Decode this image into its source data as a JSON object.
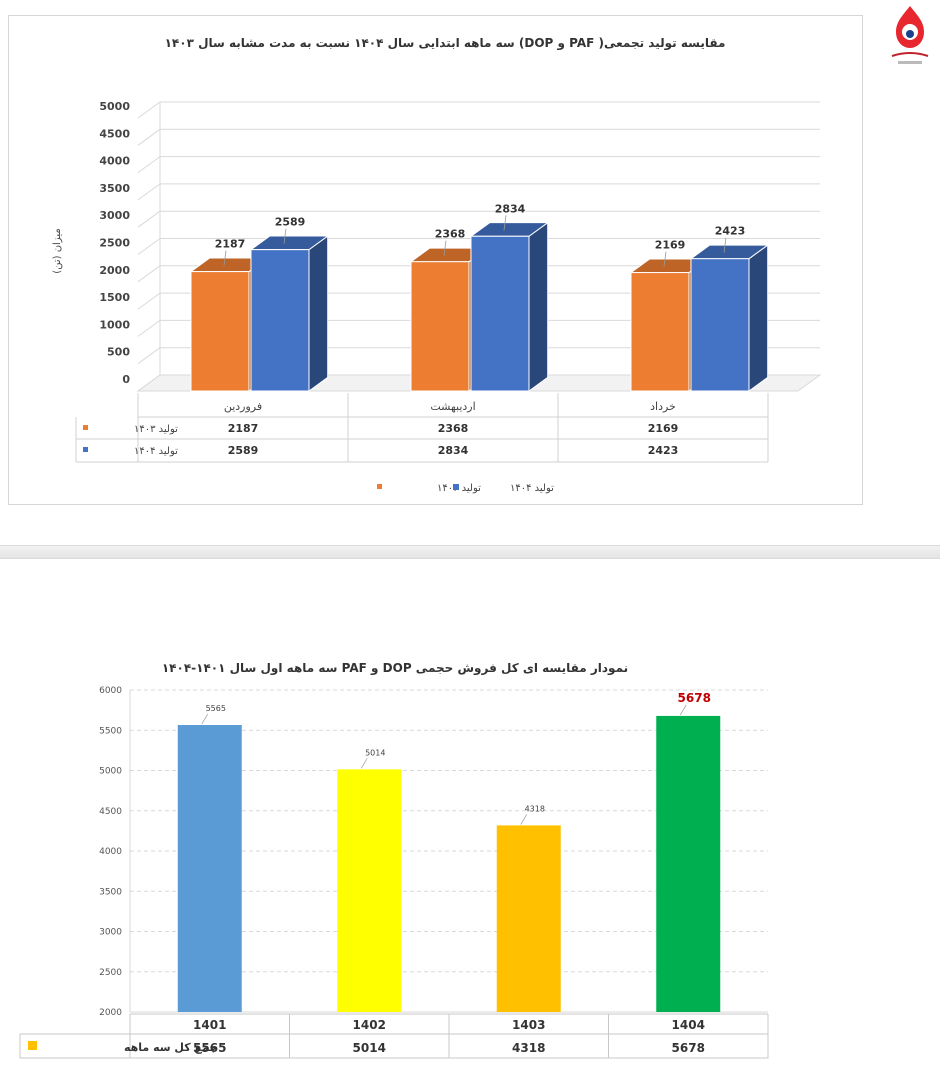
{
  "chart_data": [
    {
      "type": "bar",
      "title": "مقایسه تولید تجمعی( PAF و DOP) سه ماهه ابتدایی سال ۱۴۰۴ نسبت به مدت مشابه سال ۱۴۰۳",
      "ylabel": "میزان (تن)",
      "xlabel": "",
      "ylim": [
        0,
        5000
      ],
      "yticks": [
        0,
        500,
        1000,
        1500,
        2000,
        2500,
        3000,
        3500,
        4000,
        4500,
        5000
      ],
      "categories": [
        "فروردین",
        "اردیبهشت",
        "خرداد"
      ],
      "series": [
        {
          "name": "تولید ۱۴۰۳",
          "values": [
            2187,
            2368,
            2169
          ],
          "color": "#ED7D31"
        },
        {
          "name": "تولید ۱۴۰۴",
          "values": [
            2589,
            2834,
            2423
          ],
          "color": "#4472C4"
        }
      ],
      "legend": "bottom",
      "grid": true,
      "data_table": true
    },
    {
      "type": "bar",
      "title": "نمودار مقایسه ای کل فروش حجمی DOP و PAF سه ماهه اول سال ۱۴۰۱-۱۴۰۴",
      "ylim": [
        2000,
        6000
      ],
      "yticks": [
        2000,
        2500,
        3000,
        3500,
        4000,
        4500,
        5000,
        5500,
        6000
      ],
      "categories": [
        "1401",
        "1402",
        "1403",
        "1404"
      ],
      "series": [
        {
          "name": "جمع کل سه ماهه",
          "values": [
            5565,
            5014,
            4318,
            5678
          ]
        }
      ],
      "bar_colors": [
        "#5B9BD5",
        "#FFFF00",
        "#FFC000",
        "#00B050"
      ],
      "legend_color": "#FFC000",
      "highlight_color": "#C00000",
      "grid": true,
      "data_table": true
    }
  ]
}
